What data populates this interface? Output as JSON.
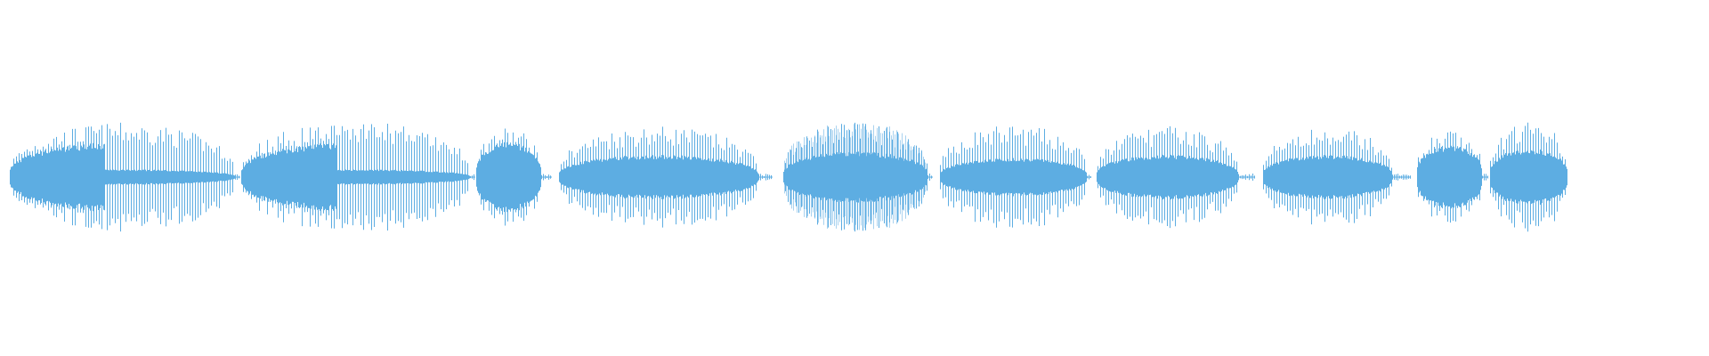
{
  "waveform": {
    "color": "#5dade2",
    "light_color": "#a9d2ef",
    "segments": [
      {
        "peak": 0.85,
        "body": 0.55,
        "style": "burst-then-sparse"
      },
      {
        "peak": 0.88,
        "body": 0.55,
        "style": "burst-then-sparse"
      },
      {
        "peak": 0.78,
        "body": 0.55,
        "style": "dense"
      },
      {
        "peak": 0.8,
        "body": 0.35,
        "style": "dense"
      },
      {
        "peak": 0.88,
        "body": 0.4,
        "style": "dense-light"
      },
      {
        "peak": 0.82,
        "body": 0.3,
        "style": "dense"
      },
      {
        "peak": 0.8,
        "body": 0.35,
        "style": "dense"
      },
      {
        "peak": 0.78,
        "body": 0.35,
        "style": "dense"
      },
      {
        "peak": 0.75,
        "body": 0.5,
        "style": "dense"
      },
      {
        "peak": 0.88,
        "body": 0.45,
        "style": "dense"
      }
    ]
  }
}
